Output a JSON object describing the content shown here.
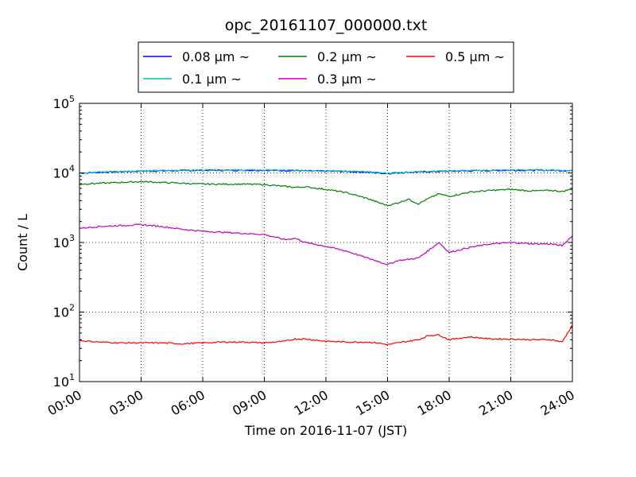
{
  "chart_data": {
    "type": "line",
    "title": "opc_20161107_000000.txt",
    "xlabel": "Time on 2016-11-07 (JST)",
    "ylabel": "Count / L",
    "x": [
      "00:00",
      "01:00",
      "02:00",
      "03:00",
      "04:00",
      "05:00",
      "06:00",
      "07:00",
      "08:00",
      "09:00",
      "10:00",
      "10:30",
      "11:00",
      "12:00",
      "13:00",
      "14:00",
      "14:30",
      "15:00",
      "15:30",
      "16:00",
      "16:30",
      "17:00",
      "17:30",
      "18:00",
      "19:00",
      "20:00",
      "21:00",
      "22:00",
      "23:00",
      "23:30",
      "24:00"
    ],
    "xticks": [
      "00:00",
      "03:00",
      "06:00",
      "09:00",
      "12:00",
      "15:00",
      "18:00",
      "21:00",
      "24:00"
    ],
    "yscale": "log",
    "ylim": [
      10,
      100000
    ],
    "yticks": [
      {
        "base": "10",
        "exp": "1"
      },
      {
        "base": "10",
        "exp": "2"
      },
      {
        "base": "10",
        "exp": "3"
      },
      {
        "base": "10",
        "exp": "4"
      },
      {
        "base": "10",
        "exp": "5"
      }
    ],
    "grid": true,
    "legend_position": "top",
    "series": [
      {
        "name": "0.08 μm ~",
        "color": "#0000ff",
        "values": [
          9900,
          10200,
          10400,
          10600,
          10700,
          10800,
          10900,
          10900,
          10900,
          10900,
          10800,
          10800,
          10700,
          10600,
          10500,
          10200,
          10000,
          9800,
          10000,
          10200,
          10300,
          10400,
          10500,
          10600,
          10700,
          10800,
          10900,
          10900,
          10900,
          10800,
          10700
        ]
      },
      {
        "name": "0.1 μm ~",
        "color": "#00bfbf",
        "values": [
          10000,
          10300,
          10500,
          10700,
          10800,
          10900,
          11000,
          11000,
          11000,
          11000,
          10900,
          10900,
          10800,
          10700,
          10600,
          10300,
          10100,
          9900,
          10100,
          10300,
          10400,
          10500,
          10600,
          10700,
          10800,
          10900,
          11000,
          11000,
          11000,
          10900,
          10800
        ]
      },
      {
        "name": "0.2 μm ~",
        "color": "#008000",
        "values": [
          6900,
          7100,
          7300,
          7500,
          7300,
          7100,
          6900,
          6900,
          6900,
          6800,
          6400,
          6200,
          6300,
          5800,
          5200,
          4300,
          3800,
          3400,
          3700,
          4200,
          3600,
          4300,
          5000,
          4600,
          5300,
          5600,
          5800,
          5500,
          5600,
          5400,
          5900
        ]
      },
      {
        "name": "0.3 μm ~",
        "color": "#bf00bf",
        "values": [
          1600,
          1700,
          1750,
          1800,
          1700,
          1550,
          1450,
          1400,
          1350,
          1300,
          1100,
          1150,
          1000,
          880,
          750,
          600,
          540,
          480,
          550,
          570,
          600,
          770,
          1000,
          720,
          850,
          950,
          1000,
          960,
          950,
          900,
          1250
        ]
      },
      {
        "name": "0.5 μm ~",
        "color": "#ff0000",
        "values": [
          39,
          37,
          36,
          36,
          36,
          35,
          36,
          37,
          37,
          36,
          38,
          41,
          41,
          38,
          37,
          37,
          36,
          34,
          36,
          38,
          40,
          46,
          47,
          40,
          44,
          41,
          41,
          40,
          40,
          37,
          65
        ]
      }
    ]
  }
}
